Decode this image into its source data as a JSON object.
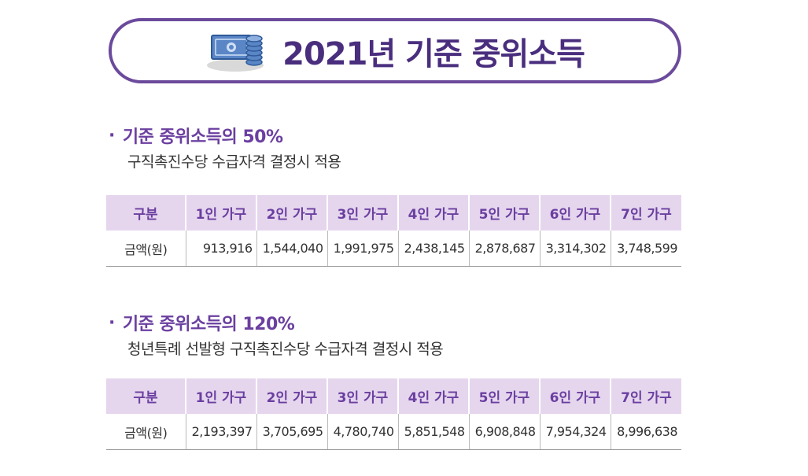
{
  "title": "2021년 기준 중위소득",
  "sections": [
    {
      "heading": "기준 중위소득의 50%",
      "subtitle": "구직촉진수당 수급자격 결정시 적용",
      "table": {
        "headers": [
          "구분",
          "1인 가구",
          "2인 가구",
          "3인 가구",
          "4인 가구",
          "5인 가구",
          "6인 가구",
          "7인 가구"
        ],
        "row_label": "금액(원)",
        "values": [
          "913,916",
          "1,544,040",
          "1,991,975",
          "2,438,145",
          "2,878,687",
          "3,314,302",
          "3,748,599"
        ]
      }
    },
    {
      "heading": "기준 중위소득의 120%",
      "subtitle": "청년특례 선발형 구직촉진수당 수급자격 결정시 적용",
      "table": {
        "headers": [
          "구분",
          "1인 가구",
          "2인 가구",
          "3인 가구",
          "4인 가구",
          "5인 가구",
          "6인 가구",
          "7인 가구"
        ],
        "row_label": "금액(원)",
        "values": [
          "2,193,397",
          "3,705,695",
          "4,780,740",
          "5,851,548",
          "6,908,848",
          "7,954,324",
          "8,996,638"
        ]
      }
    }
  ],
  "colors": {
    "accent": "#6b3fa0",
    "title": "#4a2e7e",
    "header_bg": "#e5d6ee"
  },
  "icons": [
    "money-coins-icon"
  ]
}
